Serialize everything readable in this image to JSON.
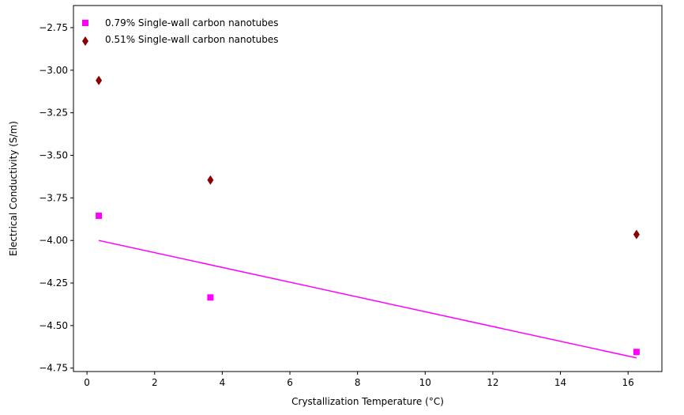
{
  "chart_data": {
    "type": "scatter",
    "title": "",
    "xlabel": "Crystallization Temperature (°C)",
    "ylabel": "Electrical Conductivity (S/m)",
    "xlim": [
      -0.4,
      17.0
    ],
    "ylim": [
      -4.77,
      -2.62
    ],
    "xticks": [
      0,
      2,
      4,
      6,
      8,
      10,
      12,
      14,
      16
    ],
    "xtick_labels": [
      "0",
      "2",
      "4",
      "6",
      "8",
      "10",
      "12",
      "14",
      "16"
    ],
    "yticks": [
      -2.75,
      -3.0,
      -3.25,
      -3.5,
      -3.75,
      -4.0,
      -4.25,
      -4.5,
      -4.75
    ],
    "ytick_labels": [
      "−2.75",
      "−3.00",
      "−3.25",
      "−3.50",
      "−3.75",
      "−4.00",
      "−4.25",
      "−4.50",
      "−4.75"
    ],
    "grid": false,
    "legend_position": "top-left",
    "series": [
      {
        "name": "0.79% Single-wall carbon nanotubes",
        "marker": "square",
        "color": "#ff00ff",
        "x": [
          0.35,
          3.65,
          16.25
        ],
        "y": [
          -3.855,
          -4.335,
          -4.655
        ]
      },
      {
        "name": "0.51% Single-wall carbon nanotubes",
        "marker": "diamond",
        "color": "#8b0000",
        "x": [
          0.35,
          3.65,
          16.25
        ],
        "y": [
          -3.06,
          -3.645,
          -3.965
        ]
      }
    ],
    "fit_line": {
      "color": "#ff00ff",
      "x": [
        0.35,
        16.25
      ],
      "y": [
        -4.0,
        -4.69
      ]
    }
  }
}
